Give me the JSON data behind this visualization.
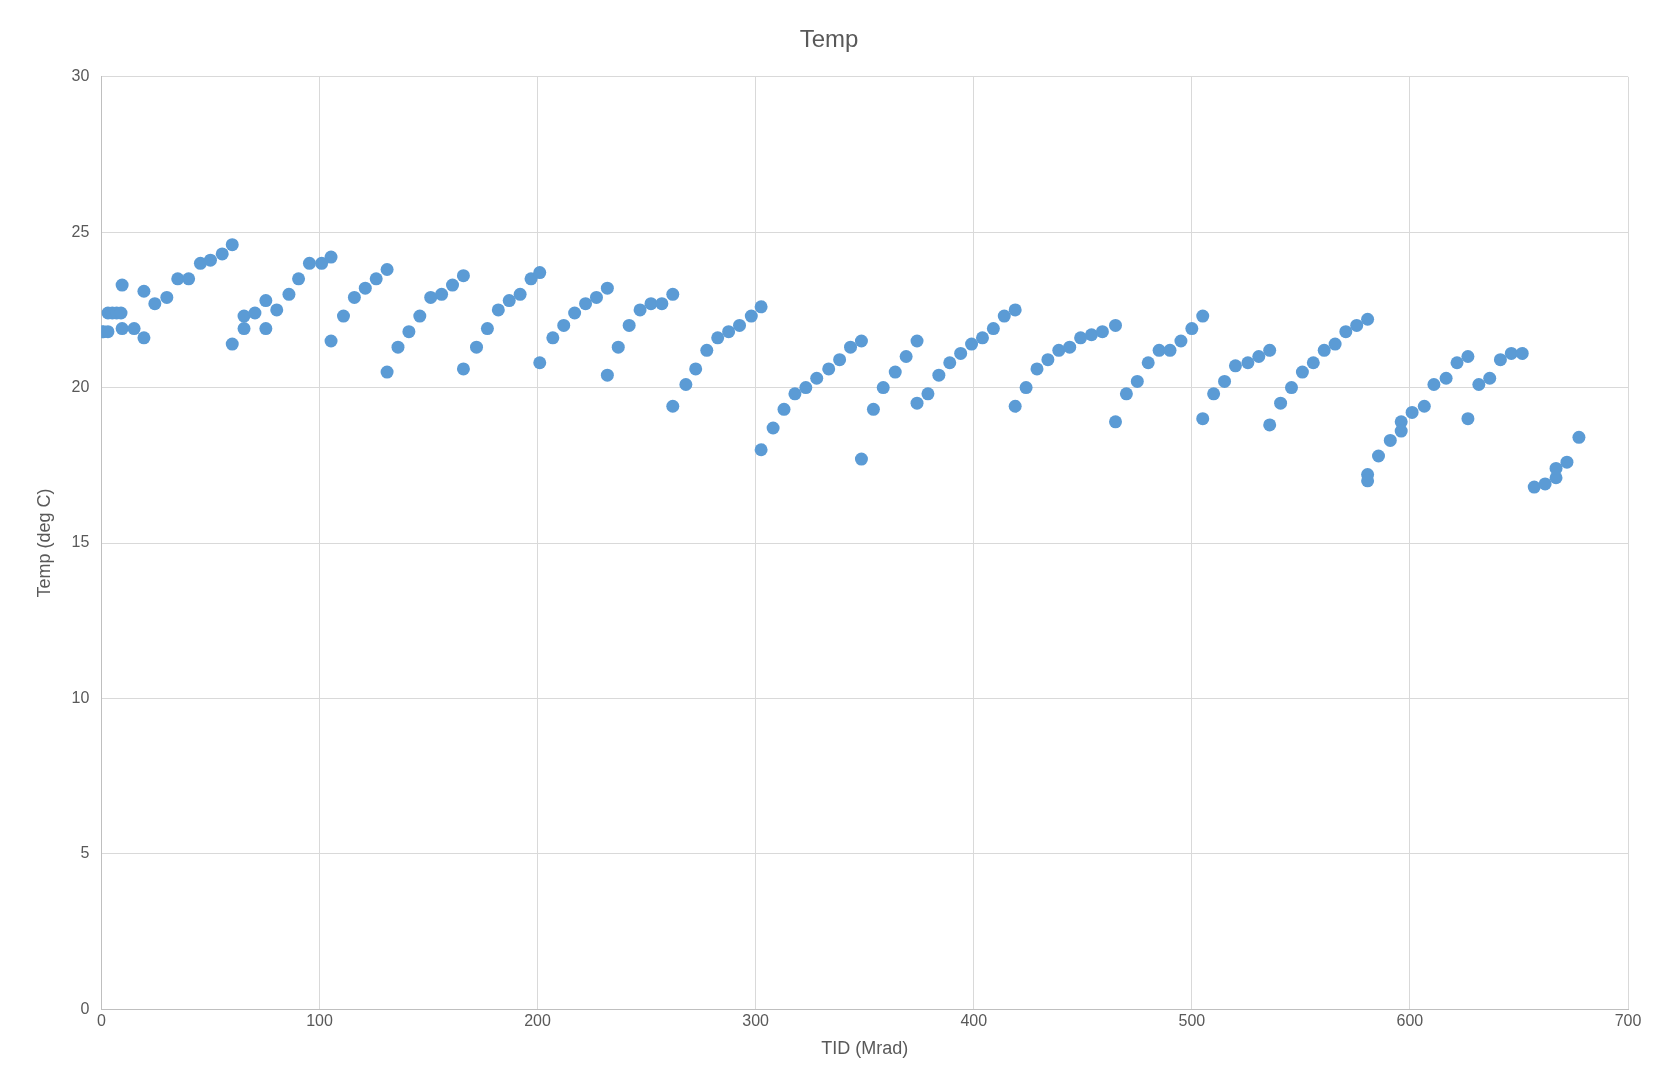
{
  "chart_data": {
    "type": "scatter",
    "title": "Temp",
    "xlabel": "TID (Mrad)",
    "ylabel": "Temp (deg C)",
    "xlim": [
      0,
      700
    ],
    "xticks": [
      0,
      100,
      200,
      300,
      400,
      500,
      600,
      700
    ],
    "ylim": [
      0,
      30
    ],
    "yticks": [
      0,
      5,
      10,
      15,
      20,
      25,
      30
    ],
    "grid": true,
    "legend": false,
    "marker": "circle",
    "series": [
      {
        "color": "#5b9bd5",
        "x": [
          0,
          1,
          3,
          3,
          5,
          7,
          9,
          9.5,
          9.5,
          15,
          19.5,
          19.5,
          24.5,
          30,
          35,
          40,
          45.4,
          50,
          55.4,
          60,
          60,
          65.4,
          65.4,
          70.4,
          75.4,
          75.4,
          80.4,
          86,
          90.4,
          95.4,
          101,
          105.3,
          105.3,
          111,
          116,
          121,
          126,
          131,
          131,
          136,
          141,
          146,
          151,
          156,
          161,
          166,
          166,
          172,
          177,
          182,
          187,
          192,
          197,
          201,
          201,
          207,
          212,
          217,
          222,
          227,
          232,
          232,
          237,
          242,
          247,
          252,
          257,
          262,
          262,
          268,
          272.5,
          277.6,
          282.6,
          287.6,
          292.6,
          298,
          302.5,
          302.5,
          308,
          313,
          318,
          323,
          328,
          333.5,
          338.5,
          343.5,
          348.5,
          348.5,
          354,
          358.5,
          364,
          369,
          374,
          374,
          379,
          384,
          389,
          394,
          399,
          404,
          409,
          414,
          419,
          419,
          424,
          429,
          434,
          439,
          444,
          449,
          454,
          459,
          465,
          465,
          470,
          475,
          480,
          485,
          490,
          495,
          500,
          505,
          505,
          510,
          515,
          520,
          525.7,
          530.7,
          535.7,
          535.7,
          540.7,
          545.7,
          550.7,
          555.7,
          560.7,
          565.7,
          570.6,
          575.6,
          580.6,
          580.6,
          580.6,
          585.6,
          591,
          596,
          596,
          601,
          606.6,
          611,
          616.6,
          621.6,
          626.6,
          626.6,
          631.6,
          636.6,
          641.5,
          646.5,
          651.5,
          657,
          662,
          667,
          667,
          672,
          677.5
        ],
        "values": [
          21.8,
          21.8,
          21.8,
          22.4,
          22.4,
          22.4,
          22.4,
          23.3,
          21.9,
          21.9,
          23.1,
          21.6,
          22.7,
          22.9,
          23.5,
          23.5,
          24.0,
          24.1,
          24.3,
          24.6,
          21.4,
          21.9,
          22.3,
          22.4,
          21.9,
          22.8,
          22.5,
          23.0,
          23.5,
          24.0,
          24.0,
          24.2,
          21.5,
          22.3,
          22.9,
          23.2,
          23.5,
          23.8,
          20.5,
          21.3,
          21.8,
          22.3,
          22.9,
          23.0,
          23.3,
          23.6,
          20.6,
          21.3,
          21.9,
          22.5,
          22.8,
          23.0,
          23.5,
          23.7,
          20.8,
          21.6,
          22.0,
          22.4,
          22.7,
          22.9,
          23.2,
          20.4,
          21.3,
          22.0,
          22.5,
          22.7,
          22.7,
          23.0,
          19.4,
          20.1,
          20.6,
          21.2,
          21.6,
          21.8,
          22.0,
          22.3,
          22.6,
          18.0,
          18.7,
          19.3,
          19.8,
          20.0,
          20.3,
          20.6,
          20.9,
          21.3,
          21.5,
          17.7,
          19.3,
          20.0,
          20.5,
          21.0,
          21.5,
          19.5,
          19.8,
          20.4,
          20.8,
          21.1,
          21.4,
          21.6,
          21.9,
          22.3,
          22.5,
          19.4,
          20.0,
          20.6,
          20.9,
          21.2,
          21.3,
          21.6,
          21.7,
          21.8,
          22.0,
          18.9,
          19.8,
          20.2,
          20.8,
          21.2,
          21.2,
          21.5,
          21.9,
          22.3,
          19.0,
          19.8,
          20.2,
          20.7,
          20.8,
          21.0,
          21.2,
          18.8,
          19.5,
          20.0,
          20.5,
          20.8,
          21.2,
          21.4,
          21.8,
          22.0,
          22.2,
          17.2,
          17.0,
          17.8,
          18.3,
          18.9,
          18.6,
          19.2,
          19.4,
          20.1,
          20.3,
          20.8,
          21.0,
          19.0,
          20.1,
          20.3,
          20.9,
          21.1,
          21.1,
          16.8,
          16.9,
          17.1,
          17.4,
          17.6,
          18.4
        ]
      }
    ]
  }
}
